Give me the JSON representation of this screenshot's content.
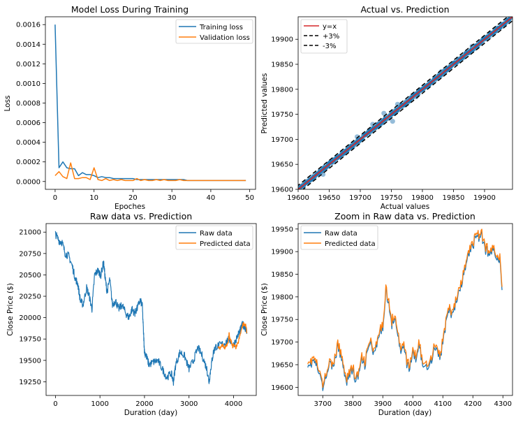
{
  "colors": {
    "blue": "#1f77b4",
    "orange": "#ff7f0e",
    "red": "#d62728",
    "black": "#000000",
    "scatter": "#4f8fc0"
  },
  "chart_data": [
    {
      "type": "line",
      "title": "Model Loss During Training",
      "xlabel": "Epoches",
      "ylabel": "Loss",
      "xlim": [
        -2.5,
        51.5
      ],
      "ylim": [
        -8e-05,
        0.00168
      ],
      "xticks": [
        0,
        10,
        20,
        30,
        40,
        50
      ],
      "yticks": [
        0.0,
        0.0002,
        0.0004,
        0.0006,
        0.0008,
        0.001,
        0.0012,
        0.0014,
        0.0016
      ],
      "ytick_labels": [
        "0.0000",
        "0.0002",
        "0.0004",
        "0.0006",
        "0.0008",
        "0.0010",
        "0.0012",
        "0.0014",
        "0.0016"
      ],
      "legend_position": "upper-right",
      "grid": false,
      "x": [
        0,
        1,
        2,
        3,
        4,
        5,
        6,
        7,
        8,
        9,
        10,
        11,
        12,
        13,
        14,
        15,
        16,
        17,
        18,
        19,
        20,
        21,
        22,
        23,
        24,
        25,
        26,
        27,
        28,
        29,
        30,
        31,
        32,
        33,
        34,
        35,
        36,
        37,
        38,
        39,
        40,
        41,
        42,
        43,
        44,
        45,
        46,
        47,
        48,
        49
      ],
      "series": [
        {
          "name": "Training loss",
          "color": "#1f77b4",
          "values": [
            0.0016,
            0.00014,
            0.0002,
            0.00014,
            0.00013,
            0.00013,
            6e-05,
            9e-05,
            7e-05,
            7e-05,
            6e-05,
            4e-05,
            5e-05,
            4e-05,
            4e-05,
            3e-05,
            3e-05,
            3e-05,
            3e-05,
            3e-05,
            3e-05,
            2e-05,
            2e-05,
            2e-05,
            2e-05,
            2e-05,
            2e-05,
            2e-05,
            2e-05,
            2e-05,
            2e-05,
            2e-05,
            2e-05,
            2e-05,
            1e-05,
            1e-05,
            1e-05,
            1e-05,
            1e-05,
            1e-05,
            1e-05,
            1e-05,
            1e-05,
            1e-05,
            1e-05,
            1e-05,
            1e-05,
            1e-05,
            1e-05,
            1e-05
          ]
        },
        {
          "name": "Validation loss",
          "color": "#ff7f0e",
          "values": [
            6e-05,
            0.0001,
            5e-05,
            3e-05,
            0.00019,
            3e-05,
            3e-05,
            4e-05,
            4e-05,
            2e-05,
            0.00014,
            2e-05,
            1e-05,
            3e-05,
            1e-05,
            2e-05,
            1e-05,
            2e-05,
            1e-05,
            1e-05,
            1e-05,
            3e-05,
            1e-05,
            2e-05,
            1e-05,
            1e-05,
            2e-05,
            1e-05,
            2e-05,
            1e-05,
            1e-05,
            1e-05,
            2e-05,
            1e-05,
            1e-05,
            1e-05,
            1e-05,
            1e-05,
            1e-05,
            1e-05,
            1e-05,
            1e-05,
            1e-05,
            1e-05,
            1e-05,
            1e-05,
            1e-05,
            1e-05,
            1e-05,
            1e-05
          ]
        }
      ]
    },
    {
      "type": "scatter",
      "title": "Actual vs. Prediction",
      "xlabel": "Actual values",
      "ylabel": "Predicted values",
      "xlim": [
        19600,
        19945
      ],
      "ylim": [
        19600,
        19945
      ],
      "xticks": [
        19600,
        19650,
        19700,
        19750,
        19800,
        19850,
        19900
      ],
      "yticks": [
        19600,
        19650,
        19700,
        19750,
        19800,
        19850,
        19900
      ],
      "legend_position": "upper-left",
      "grid": false,
      "lines": [
        {
          "name": "y=x",
          "color": "#d62728",
          "style": "solid",
          "slope": 1.0
        },
        {
          "name": "+3%",
          "color": "#000000",
          "style": "dashed",
          "offset": 8
        },
        {
          "name": "-3%",
          "color": "#000000",
          "style": "dashed",
          "offset": -8
        }
      ],
      "points_x_range": [
        19602,
        19942
      ],
      "points_color": "#1f77b4",
      "outliers": [
        {
          "x": 19640,
          "y": 19630
        },
        {
          "x": 19695,
          "y": 19705
        },
        {
          "x": 19720,
          "y": 19730
        },
        {
          "x": 19738,
          "y": 19752
        },
        {
          "x": 19745,
          "y": 19742
        },
        {
          "x": 19752,
          "y": 19736
        },
        {
          "x": 19760,
          "y": 19770
        },
        {
          "x": 19790,
          "y": 19785
        },
        {
          "x": 19830,
          "y": 19835
        },
        {
          "x": 19880,
          "y": 19886
        }
      ]
    },
    {
      "type": "line",
      "title": "Raw data vs. Prediction",
      "xlabel": "Duration (day)",
      "ylabel": "Close Price ($)",
      "xlim": [
        -210,
        4510
      ],
      "ylim": [
        19090,
        21100
      ],
      "xticks": [
        0,
        1000,
        2000,
        3000,
        4000
      ],
      "yticks": [
        19250,
        19500,
        19750,
        20000,
        20250,
        20500,
        20750,
        21000
      ],
      "legend_position": "upper-right",
      "grid": false,
      "series": [
        {
          "name": "Raw data",
          "color": "#1f77b4",
          "x": [
            0,
            80,
            150,
            220,
            300,
            380,
            450,
            500,
            560,
            620,
            700,
            760,
            820,
            880,
            950,
            1020,
            1080,
            1120,
            1160,
            1220,
            1280,
            1350,
            1420,
            1500,
            1580,
            1650,
            1720,
            1780,
            1830,
            1900,
            1950,
            1980,
            2000,
            2040,
            2100,
            2200,
            2300,
            2400,
            2500,
            2600,
            2650,
            2700,
            2800,
            2900,
            3000,
            3100,
            3200,
            3300,
            3400,
            3450,
            3500,
            3550,
            3600,
            3700,
            3800,
            3900,
            4000,
            4100,
            4150,
            4200,
            4250,
            4300
          ],
          "values": [
            20980,
            20900,
            20880,
            20750,
            20720,
            20600,
            20450,
            20400,
            20200,
            20150,
            20350,
            20250,
            20100,
            20500,
            20550,
            20500,
            20650,
            20450,
            20300,
            20450,
            20150,
            20200,
            20100,
            20150,
            20050,
            20000,
            20100,
            20050,
            20100,
            20200,
            20150,
            19800,
            19600,
            19550,
            19450,
            19480,
            19500,
            19400,
            19300,
            19350,
            19250,
            19450,
            19600,
            19550,
            19400,
            19500,
            19650,
            19550,
            19400,
            19250,
            19450,
            19600,
            19660,
            19680,
            19700,
            19750,
            19680,
            19800,
            19850,
            19920,
            19900,
            19820
          ]
        },
        {
          "name": "Predicted data",
          "color": "#ff7f0e",
          "x": [
            3650,
            3700,
            3750,
            3800,
            3850,
            3880,
            3900,
            3920,
            3950,
            3980,
            4000,
            4050,
            4100,
            4150,
            4200,
            4220,
            4250,
            4280,
            4300
          ],
          "values": [
            19660,
            19640,
            19680,
            19640,
            19680,
            19700,
            19820,
            19740,
            19720,
            19660,
            19680,
            19650,
            19700,
            19800,
            19900,
            19930,
            19920,
            19900,
            19820
          ]
        }
      ]
    },
    {
      "type": "line",
      "title": "Zoom in Raw data vs. Prediction",
      "xlabel": "Duration (day)",
      "ylabel": "Close Price ($)",
      "xlim": [
        3618,
        4332
      ],
      "ylim": [
        19582,
        19962
      ],
      "xticks": [
        3700,
        3800,
        3900,
        4000,
        4100,
        4200,
        4300
      ],
      "yticks": [
        19600,
        19650,
        19700,
        19750,
        19800,
        19850,
        19900,
        19950
      ],
      "legend_position": "upper-left",
      "grid": false,
      "x": [
        3650,
        3660,
        3670,
        3680,
        3690,
        3700,
        3710,
        3720,
        3730,
        3740,
        3750,
        3760,
        3770,
        3780,
        3790,
        3800,
        3810,
        3820,
        3830,
        3840,
        3850,
        3860,
        3870,
        3880,
        3890,
        3900,
        3910,
        3920,
        3930,
        3940,
        3950,
        3960,
        3970,
        3980,
        3990,
        4000,
        4010,
        4020,
        4030,
        4040,
        4050,
        4060,
        4070,
        4080,
        4090,
        4100,
        4110,
        4120,
        4130,
        4140,
        4150,
        4160,
        4170,
        4180,
        4190,
        4200,
        4210,
        4220,
        4230,
        4240,
        4250,
        4260,
        4270,
        4280,
        4290,
        4297
      ],
      "series": [
        {
          "name": "Raw data",
          "color": "#1f77b4",
          "values": [
            19655,
            19650,
            19660,
            19645,
            19625,
            19600,
            19620,
            19655,
            19640,
            19660,
            19690,
            19670,
            19640,
            19615,
            19630,
            19640,
            19610,
            19630,
            19660,
            19650,
            19680,
            19700,
            19670,
            19690,
            19720,
            19730,
            19820,
            19780,
            19740,
            19760,
            19720,
            19670,
            19700,
            19650,
            19640,
            19680,
            19660,
            19700,
            19660,
            19640,
            19650,
            19655,
            19685,
            19690,
            19660,
            19700,
            19740,
            19770,
            19760,
            19780,
            19800,
            19820,
            19850,
            19880,
            19900,
            19910,
            19940,
            19930,
            19935,
            19905,
            19900,
            19895,
            19905,
            19890,
            19880,
            19815
          ]
        },
        {
          "name": "Predicted data",
          "color": "#ff7f0e",
          "values": [
            19662,
            19657,
            19666,
            19652,
            19630,
            19607,
            19625,
            19660,
            19645,
            19665,
            19695,
            19677,
            19647,
            19622,
            19636,
            19647,
            19617,
            19636,
            19666,
            19657,
            19686,
            19705,
            19677,
            19696,
            19725,
            19737,
            19826,
            19786,
            19747,
            19766,
            19727,
            19677,
            19706,
            19657,
            19647,
            19686,
            19667,
            19706,
            19667,
            19647,
            19657,
            19662,
            19692,
            19696,
            19666,
            19706,
            19746,
            19776,
            19766,
            19786,
            19806,
            19826,
            19856,
            19886,
            19906,
            19916,
            19946,
            19936,
            19940,
            19912,
            19906,
            19900,
            19910,
            19896,
            19886,
            19822
          ]
        }
      ]
    }
  ]
}
